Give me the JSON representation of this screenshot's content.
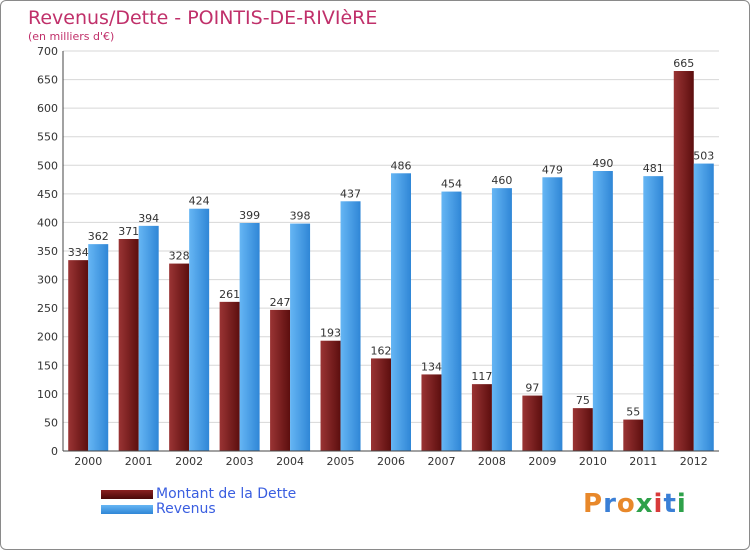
{
  "title": "Revenus/Dette - POINTIS-DE-RIVIèRE",
  "subtitle": "(en milliers d'€)",
  "logo": "Proxiti",
  "colors": {
    "dette_light": "#8e2a2a",
    "dette_dark": "#5a0d0d",
    "revenus_light": "#5aaef0",
    "revenus_dark": "#2f86d6",
    "title": "#c0306a",
    "legend_text": "#3a5ee0"
  },
  "chart_data": {
    "type": "bar",
    "title": "Revenus/Dette - POINTIS-DE-RIVIèRE",
    "ylabel": "(en milliers d'€)",
    "xlabel": "",
    "ylim": [
      0,
      700
    ],
    "yticks": [
      "0",
      "50",
      "100",
      "150",
      "200",
      "250",
      "300",
      "350",
      "400",
      "450",
      "500",
      "550",
      "600",
      "650",
      "700"
    ],
    "grid": true,
    "legend_position": "bottom-left",
    "categories": [
      "2000",
      "2001",
      "2002",
      "2003",
      "2004",
      "2005",
      "2006",
      "2007",
      "2008",
      "2009",
      "2010",
      "2011",
      "2012"
    ],
    "series": [
      {
        "name": "Montant de la Dette",
        "values": [
          334,
          371,
          328,
          261,
          247,
          193,
          162,
          134,
          117,
          97,
          75,
          55,
          665
        ]
      },
      {
        "name": "Revenus",
        "values": [
          362,
          394,
          424,
          399,
          398,
          437,
          486,
          454,
          460,
          479,
          490,
          481,
          503
        ]
      }
    ]
  }
}
